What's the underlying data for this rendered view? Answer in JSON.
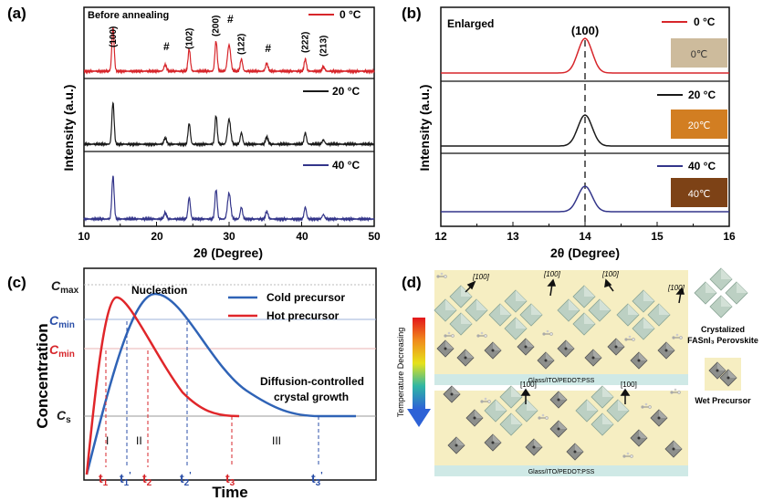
{
  "panel_a": {
    "label": "(a)",
    "xlabel": "2θ (Degree)",
    "ylabel": "Intensity (a.u.)",
    "xticks": [
      "10",
      "20",
      "30",
      "40",
      "50"
    ],
    "xlim": [
      10,
      50
    ],
    "note": "Before annealing",
    "peak_labels": [
      {
        "text": "(100)",
        "x": 14.0
      },
      {
        "text": "#",
        "x": 21.2
      },
      {
        "text": "(102)",
        "x": 24.5
      },
      {
        "text": "(200)",
        "x": 28.2
      },
      {
        "text": "#",
        "x": 30.0
      },
      {
        "text": "(122)",
        "x": 31.7
      },
      {
        "text": "#",
        "x": 35.2
      },
      {
        "text": "(222)",
        "x": 40.5
      },
      {
        "text": "(213)",
        "x": 43.0
      }
    ],
    "series": [
      {
        "name": "0 °C",
        "color": "#d7262b"
      },
      {
        "name": "20 °C",
        "color": "#1a1a1a"
      },
      {
        "name": "40 °C",
        "color": "#33358a"
      }
    ],
    "peaks": [
      {
        "x": 14.0,
        "h": 0.8,
        "w": 0.22
      },
      {
        "x": 21.2,
        "h": 0.12,
        "w": 0.25
      },
      {
        "x": 24.5,
        "h": 0.4,
        "w": 0.22
      },
      {
        "x": 28.2,
        "h": 0.55,
        "w": 0.22
      },
      {
        "x": 30.0,
        "h": 0.48,
        "w": 0.3
      },
      {
        "x": 31.7,
        "h": 0.22,
        "w": 0.22
      },
      {
        "x": 35.2,
        "h": 0.14,
        "w": 0.25
      },
      {
        "x": 40.5,
        "h": 0.22,
        "w": 0.22
      },
      {
        "x": 43.0,
        "h": 0.08,
        "w": 0.25
      }
    ]
  },
  "panel_b": {
    "label": "(b)",
    "xlabel": "2θ (Degree)",
    "ylabel": "Intensity (a.u.)",
    "xticks": [
      "12",
      "13",
      "14",
      "15",
      "16"
    ],
    "xlim": [
      12,
      16
    ],
    "note": "Enlarged",
    "peak_label": "(100)",
    "peak_x": 14.0,
    "series": [
      {
        "name": "0 °C",
        "color": "#d7262b",
        "swatch_text": "0℃",
        "swatch_color": "#cdbb9c"
      },
      {
        "name": "20 °C",
        "color": "#1a1a1a",
        "swatch_text": "20℃",
        "swatch_color": "#d27e22"
      },
      {
        "name": "40 °C",
        "color": "#33358a",
        "swatch_text": "40℃",
        "swatch_color": "#7d4216"
      }
    ]
  },
  "panel_c": {
    "label": "(c)",
    "ylabel": "Concentration",
    "xlabel": "Time",
    "y_levels": [
      {
        "label": "C",
        "sub": "max",
        "color": "#1a1a1a"
      },
      {
        "label": "C",
        "sub": "min",
        "color": "#2b4fa8"
      },
      {
        "label": "C",
        "sub": "min",
        "color": "#d7262b"
      },
      {
        "label": "C",
        "sub": "s",
        "color": "#1a1a1a"
      }
    ],
    "nucleation_label": "Nucleation",
    "growth_label_1": "Diffusion-controlled",
    "growth_label_2": "crystal growth",
    "stages": [
      "I",
      "II",
      "III"
    ],
    "legend": [
      {
        "name": "Cold precursor",
        "color": "#2f63b6"
      },
      {
        "name": "Hot precursor",
        "color": "#e0262a"
      }
    ],
    "times": [
      {
        "t": "t",
        "sub": "1",
        "prime": "",
        "color": "#d7262b"
      },
      {
        "t": "t",
        "sub": "1",
        "prime": "'",
        "color": "#2b4fa8"
      },
      {
        "t": "t",
        "sub": "2",
        "prime": "",
        "color": "#d7262b"
      },
      {
        "t": "t",
        "sub": "2",
        "prime": "'",
        "color": "#2b4fa8"
      },
      {
        "t": "t",
        "sub": "3",
        "prime": "",
        "color": "#d7262b"
      },
      {
        "t": "t",
        "sub": "3",
        "prime": "'",
        "color": "#2b4fa8"
      }
    ]
  },
  "panel_d": {
    "label": "(d)",
    "gradient_label": "Temperature Decreasing",
    "substrate_label_top": "Glass/ITO/PEDOT:PSS",
    "substrate_label_bottom": "Glass/ITO/PEDOT:PSS",
    "direction_labels": [
      "[100]",
      "[100]",
      "[100]",
      "[100]",
      "[100]",
      "[100]"
    ],
    "legend_crystal_1": "Crystalized",
    "legend_crystal_2": "FASnI₃ Perovskite",
    "legend_precursor": "Wet Precursor",
    "colors": {
      "film": "#f6eec2",
      "substrate": "#cfe9e6"
    }
  }
}
